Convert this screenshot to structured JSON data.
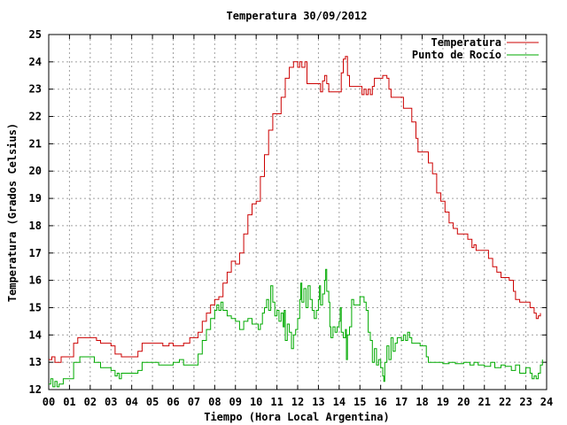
{
  "chart_data": {
    "type": "line",
    "title": "Temperatura 30/09/2012",
    "xlabel": "Tiempo (Hora Local Argentina)",
    "ylabel": "Temperatura (Grados Celsius)",
    "xlim": [
      0,
      24
    ],
    "ylim": [
      12,
      25
    ],
    "x_ticks": [
      "00",
      "01",
      "02",
      "03",
      "04",
      "05",
      "06",
      "07",
      "08",
      "09",
      "10",
      "11",
      "12",
      "13",
      "14",
      "15",
      "16",
      "17",
      "18",
      "19",
      "20",
      "21",
      "22",
      "23",
      "24"
    ],
    "y_ticks": [
      "12",
      "13",
      "14",
      "15",
      "16",
      "17",
      "18",
      "19",
      "20",
      "21",
      "22",
      "23",
      "24",
      "25"
    ],
    "grid": true,
    "legend_position": "top-right",
    "series": [
      {
        "name": "Temperatura",
        "color": "#cc0000",
        "points": [
          [
            0.0,
            13.1
          ],
          [
            0.15,
            13.2
          ],
          [
            0.3,
            13.0
          ],
          [
            0.5,
            13.0
          ],
          [
            0.6,
            13.2
          ],
          [
            1.0,
            13.2
          ],
          [
            1.2,
            13.7
          ],
          [
            1.4,
            13.9
          ],
          [
            2.0,
            13.9
          ],
          [
            2.3,
            13.8
          ],
          [
            2.5,
            13.7
          ],
          [
            3.0,
            13.6
          ],
          [
            3.2,
            13.3
          ],
          [
            3.5,
            13.2
          ],
          [
            4.0,
            13.2
          ],
          [
            4.3,
            13.4
          ],
          [
            4.5,
            13.7
          ],
          [
            5.0,
            13.7
          ],
          [
            5.3,
            13.7
          ],
          [
            5.5,
            13.6
          ],
          [
            5.8,
            13.7
          ],
          [
            6.0,
            13.6
          ],
          [
            6.3,
            13.6
          ],
          [
            6.5,
            13.7
          ],
          [
            6.8,
            13.9
          ],
          [
            7.0,
            13.9
          ],
          [
            7.2,
            14.1
          ],
          [
            7.4,
            14.5
          ],
          [
            7.6,
            14.8
          ],
          [
            7.8,
            15.1
          ],
          [
            8.0,
            15.3
          ],
          [
            8.2,
            15.4
          ],
          [
            8.4,
            15.9
          ],
          [
            8.6,
            16.3
          ],
          [
            8.8,
            16.7
          ],
          [
            9.0,
            16.6
          ],
          [
            9.2,
            17.0
          ],
          [
            9.4,
            17.7
          ],
          [
            9.6,
            18.4
          ],
          [
            9.8,
            18.8
          ],
          [
            10.0,
            18.9
          ],
          [
            10.2,
            19.8
          ],
          [
            10.4,
            20.6
          ],
          [
            10.6,
            21.5
          ],
          [
            10.8,
            22.1
          ],
          [
            11.0,
            22.1
          ],
          [
            11.2,
            22.7
          ],
          [
            11.4,
            23.4
          ],
          [
            11.6,
            23.8
          ],
          [
            11.8,
            24.0
          ],
          [
            12.0,
            23.8
          ],
          [
            12.1,
            24.0
          ],
          [
            12.2,
            23.8
          ],
          [
            12.35,
            24.0
          ],
          [
            12.45,
            23.2
          ],
          [
            12.7,
            23.2
          ],
          [
            13.0,
            23.2
          ],
          [
            13.1,
            22.9
          ],
          [
            13.2,
            23.3
          ],
          [
            13.3,
            23.5
          ],
          [
            13.4,
            23.2
          ],
          [
            13.5,
            22.9
          ],
          [
            13.7,
            22.9
          ],
          [
            14.0,
            22.9
          ],
          [
            14.1,
            23.6
          ],
          [
            14.2,
            24.1
          ],
          [
            14.3,
            24.2
          ],
          [
            14.4,
            23.5
          ],
          [
            14.5,
            23.1
          ],
          [
            14.7,
            23.1
          ],
          [
            15.0,
            23.1
          ],
          [
            15.1,
            22.8
          ],
          [
            15.2,
            23.0
          ],
          [
            15.3,
            22.8
          ],
          [
            15.4,
            23.0
          ],
          [
            15.5,
            22.8
          ],
          [
            15.6,
            23.1
          ],
          [
            15.7,
            23.4
          ],
          [
            16.0,
            23.4
          ],
          [
            16.1,
            23.5
          ],
          [
            16.3,
            23.4
          ],
          [
            16.4,
            23.0
          ],
          [
            16.5,
            22.7
          ],
          [
            17.0,
            22.7
          ],
          [
            17.1,
            22.3
          ],
          [
            17.3,
            22.3
          ],
          [
            17.5,
            21.8
          ],
          [
            17.7,
            21.2
          ],
          [
            17.8,
            20.7
          ],
          [
            18.2,
            20.7
          ],
          [
            18.3,
            20.3
          ],
          [
            18.5,
            19.9
          ],
          [
            18.7,
            19.2
          ],
          [
            18.9,
            18.9
          ],
          [
            19.1,
            18.5
          ],
          [
            19.3,
            18.1
          ],
          [
            19.5,
            17.9
          ],
          [
            19.7,
            17.7
          ],
          [
            20.0,
            17.7
          ],
          [
            20.2,
            17.5
          ],
          [
            20.4,
            17.2
          ],
          [
            20.5,
            17.3
          ],
          [
            20.6,
            17.1
          ],
          [
            21.0,
            17.1
          ],
          [
            21.2,
            16.8
          ],
          [
            21.4,
            16.5
          ],
          [
            21.6,
            16.3
          ],
          [
            21.8,
            16.1
          ],
          [
            22.2,
            16.0
          ],
          [
            22.4,
            15.6
          ],
          [
            22.5,
            15.3
          ],
          [
            22.7,
            15.2
          ],
          [
            23.0,
            15.2
          ],
          [
            23.2,
            15.0
          ],
          [
            23.4,
            14.8
          ],
          [
            23.5,
            14.6
          ],
          [
            23.6,
            14.7
          ],
          [
            23.7,
            14.8
          ]
        ]
      },
      {
        "name": "Punto de Rocío",
        "color": "#00aa00",
        "points": [
          [
            0.0,
            12.2
          ],
          [
            0.1,
            12.4
          ],
          [
            0.2,
            12.1
          ],
          [
            0.3,
            12.3
          ],
          [
            0.4,
            12.1
          ],
          [
            0.5,
            12.2
          ],
          [
            0.7,
            12.4
          ],
          [
            1.0,
            12.4
          ],
          [
            1.2,
            13.0
          ],
          [
            1.5,
            13.2
          ],
          [
            2.0,
            13.2
          ],
          [
            2.2,
            13.0
          ],
          [
            2.5,
            12.8
          ],
          [
            2.8,
            12.8
          ],
          [
            3.0,
            12.7
          ],
          [
            3.2,
            12.5
          ],
          [
            3.3,
            12.6
          ],
          [
            3.4,
            12.4
          ],
          [
            3.5,
            12.6
          ],
          [
            4.0,
            12.6
          ],
          [
            4.3,
            12.7
          ],
          [
            4.5,
            13.0
          ],
          [
            5.0,
            13.0
          ],
          [
            5.3,
            12.9
          ],
          [
            5.5,
            12.9
          ],
          [
            6.0,
            13.0
          ],
          [
            6.3,
            13.1
          ],
          [
            6.5,
            12.9
          ],
          [
            7.0,
            12.9
          ],
          [
            7.2,
            13.3
          ],
          [
            7.4,
            13.8
          ],
          [
            7.6,
            14.2
          ],
          [
            7.8,
            14.6
          ],
          [
            8.0,
            14.9
          ],
          [
            8.1,
            15.1
          ],
          [
            8.2,
            14.9
          ],
          [
            8.3,
            15.2
          ],
          [
            8.4,
            14.9
          ],
          [
            8.6,
            14.7
          ],
          [
            8.8,
            14.6
          ],
          [
            9.0,
            14.5
          ],
          [
            9.2,
            14.2
          ],
          [
            9.4,
            14.5
          ],
          [
            9.6,
            14.6
          ],
          [
            9.8,
            14.4
          ],
          [
            10.0,
            14.4
          ],
          [
            10.1,
            14.2
          ],
          [
            10.2,
            14.4
          ],
          [
            10.3,
            14.8
          ],
          [
            10.4,
            15.0
          ],
          [
            10.5,
            15.3
          ],
          [
            10.6,
            14.9
          ],
          [
            10.7,
            15.8
          ],
          [
            10.8,
            15.2
          ],
          [
            10.9,
            14.7
          ],
          [
            11.0,
            14.9
          ],
          [
            11.1,
            14.5
          ],
          [
            11.2,
            14.8
          ],
          [
            11.3,
            14.3
          ],
          [
            11.35,
            14.9
          ],
          [
            11.4,
            13.8
          ],
          [
            11.5,
            14.4
          ],
          [
            11.6,
            14.1
          ],
          [
            11.7,
            13.5
          ],
          [
            11.8,
            14.0
          ],
          [
            11.9,
            14.2
          ],
          [
            12.0,
            14.6
          ],
          [
            12.1,
            15.3
          ],
          [
            12.15,
            15.9
          ],
          [
            12.2,
            15.2
          ],
          [
            12.3,
            15.7
          ],
          [
            12.4,
            15.0
          ],
          [
            12.5,
            15.8
          ],
          [
            12.6,
            15.3
          ],
          [
            12.7,
            14.9
          ],
          [
            12.8,
            14.6
          ],
          [
            12.9,
            14.9
          ],
          [
            13.0,
            15.3
          ],
          [
            13.05,
            15.8
          ],
          [
            13.1,
            15.1
          ],
          [
            13.2,
            15.5
          ],
          [
            13.3,
            16.0
          ],
          [
            13.35,
            16.4
          ],
          [
            13.4,
            15.6
          ],
          [
            13.5,
            15.2
          ],
          [
            13.55,
            14.3
          ],
          [
            13.6,
            13.9
          ],
          [
            13.7,
            14.3
          ],
          [
            13.8,
            14.1
          ],
          [
            13.9,
            14.3
          ],
          [
            14.0,
            14.5
          ],
          [
            14.05,
            15.0
          ],
          [
            14.1,
            14.1
          ],
          [
            14.2,
            13.9
          ],
          [
            14.3,
            14.2
          ],
          [
            14.35,
            13.1
          ],
          [
            14.4,
            14.0
          ],
          [
            14.5,
            14.3
          ],
          [
            14.6,
            15.3
          ],
          [
            14.7,
            15.1
          ],
          [
            15.0,
            15.4
          ],
          [
            15.2,
            15.2
          ],
          [
            15.3,
            14.9
          ],
          [
            15.4,
            14.1
          ],
          [
            15.5,
            13.8
          ],
          [
            15.6,
            13.0
          ],
          [
            15.7,
            13.5
          ],
          [
            15.8,
            12.9
          ],
          [
            15.9,
            13.1
          ],
          [
            16.0,
            12.8
          ],
          [
            16.1,
            12.5
          ],
          [
            16.15,
            12.3
          ],
          [
            16.2,
            13.0
          ],
          [
            16.3,
            13.6
          ],
          [
            16.4,
            13.1
          ],
          [
            16.5,
            13.9
          ],
          [
            16.6,
            13.4
          ],
          [
            16.7,
            13.7
          ],
          [
            16.8,
            13.9
          ],
          [
            17.0,
            13.8
          ],
          [
            17.1,
            14.0
          ],
          [
            17.2,
            13.8
          ],
          [
            17.3,
            14.1
          ],
          [
            17.4,
            13.9
          ],
          [
            17.5,
            13.7
          ],
          [
            17.7,
            13.7
          ],
          [
            17.9,
            13.6
          ],
          [
            18.0,
            13.6
          ],
          [
            18.2,
            13.2
          ],
          [
            18.3,
            13.0
          ],
          [
            18.5,
            13.0
          ],
          [
            18.7,
            13.0
          ],
          [
            19.0,
            12.95
          ],
          [
            19.3,
            13.0
          ],
          [
            19.6,
            12.95
          ],
          [
            20.0,
            13.0
          ],
          [
            20.3,
            12.9
          ],
          [
            20.5,
            13.0
          ],
          [
            20.7,
            12.9
          ],
          [
            21.0,
            12.85
          ],
          [
            21.3,
            13.0
          ],
          [
            21.5,
            12.8
          ],
          [
            21.8,
            12.9
          ],
          [
            22.0,
            12.85
          ],
          [
            22.3,
            12.7
          ],
          [
            22.5,
            12.9
          ],
          [
            22.7,
            12.6
          ],
          [
            23.0,
            12.8
          ],
          [
            23.2,
            12.6
          ],
          [
            23.3,
            12.4
          ],
          [
            23.4,
            12.5
          ],
          [
            23.5,
            12.4
          ],
          [
            23.6,
            12.6
          ],
          [
            23.7,
            12.9
          ],
          [
            23.8,
            13.1
          ]
        ]
      }
    ]
  }
}
